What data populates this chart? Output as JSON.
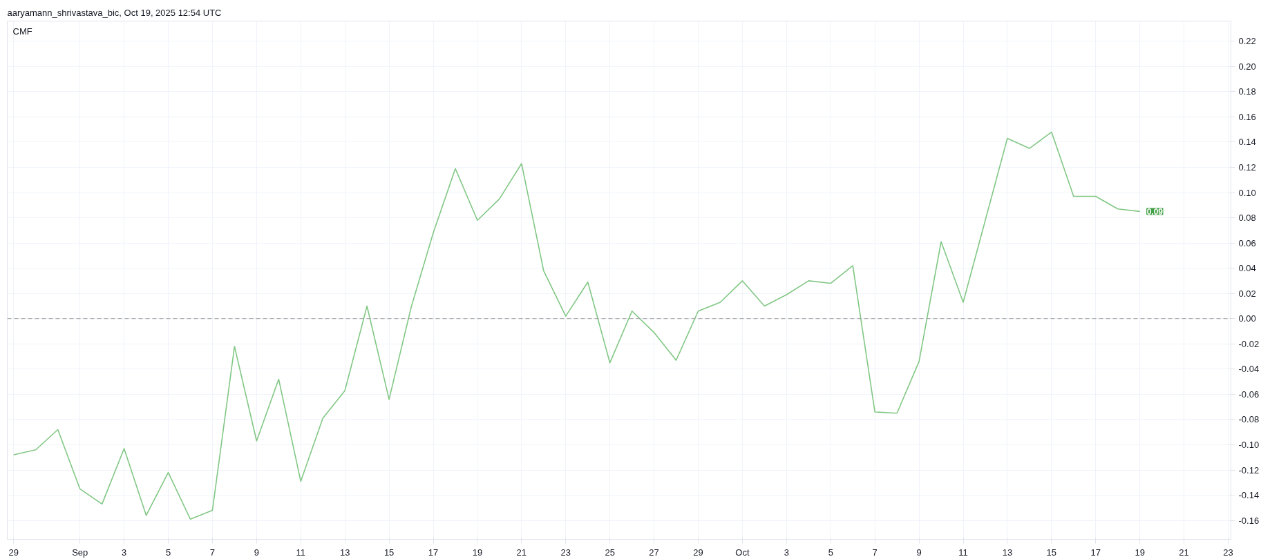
{
  "chart_data": {
    "type": "line",
    "title": "aaryamann_shrivastava_bic, Oct 19, 2025 12:54 UTC",
    "x": [
      "2025-08-29",
      "2025-08-30",
      "2025-08-31",
      "2025-09-01",
      "2025-09-02",
      "2025-09-03",
      "2025-09-04",
      "2025-09-05",
      "2025-09-06",
      "2025-09-07",
      "2025-09-08",
      "2025-09-09",
      "2025-09-10",
      "2025-09-11",
      "2025-09-12",
      "2025-09-13",
      "2025-09-14",
      "2025-09-15",
      "2025-09-16",
      "2025-09-17",
      "2025-09-18",
      "2025-09-19",
      "2025-09-20",
      "2025-09-21",
      "2025-09-22",
      "2025-09-23",
      "2025-09-24",
      "2025-09-25",
      "2025-09-26",
      "2025-09-27",
      "2025-09-28",
      "2025-09-29",
      "2025-09-30",
      "2025-10-01",
      "2025-10-02",
      "2025-10-03",
      "2025-10-04",
      "2025-10-05",
      "2025-10-06",
      "2025-10-07",
      "2025-10-08",
      "2025-10-09",
      "2025-10-10",
      "2025-10-11",
      "2025-10-12",
      "2025-10-13",
      "2025-10-14",
      "2025-10-15",
      "2025-10-16",
      "2025-10-17",
      "2025-10-18",
      "2025-10-19"
    ],
    "series": [
      {
        "name": "CMF",
        "color": "#81c784",
        "values": [
          -0.108,
          -0.104,
          -0.088,
          -0.135,
          -0.147,
          -0.103,
          -0.156,
          -0.122,
          -0.159,
          -0.152,
          -0.022,
          -0.097,
          -0.048,
          -0.129,
          -0.079,
          -0.057,
          0.01,
          -0.064,
          0.009,
          0.068,
          0.119,
          0.078,
          0.095,
          0.123,
          0.038,
          0.002,
          0.029,
          -0.035,
          0.006,
          -0.011,
          -0.033,
          0.006,
          0.013,
          0.03,
          0.01,
          0.019,
          0.03,
          0.028,
          0.042,
          -0.074,
          -0.075,
          -0.034,
          0.061,
          0.013,
          0.078,
          0.143,
          0.135,
          0.148,
          0.097,
          0.097,
          0.087,
          0.085
        ],
        "value_labels": [
          null,
          null,
          null,
          null,
          null,
          null,
          null,
          null,
          null,
          null,
          null,
          null,
          null,
          null,
          null,
          null,
          null,
          null,
          null,
          null,
          null,
          null,
          null,
          null,
          null,
          null,
          null,
          null,
          null,
          null,
          null,
          null,
          null,
          null,
          null,
          null,
          null,
          null,
          null,
          null,
          null,
          null,
          null,
          null,
          null,
          null,
          null,
          null,
          null,
          null,
          null,
          "0.09"
        ]
      }
    ],
    "xlim": [
      "2025-08-28T17:00",
      "2025-10-23T03:00"
    ],
    "xticks": [
      {
        "value": "2025-08-29",
        "label": "29"
      },
      {
        "value": "2025-09-01",
        "label": "Sep"
      },
      {
        "value": "2025-09-03",
        "label": "3"
      },
      {
        "value": "2025-09-05",
        "label": "5"
      },
      {
        "value": "2025-09-07",
        "label": "7"
      },
      {
        "value": "2025-09-09",
        "label": "9"
      },
      {
        "value": "2025-09-11",
        "label": "11"
      },
      {
        "value": "2025-09-13",
        "label": "13"
      },
      {
        "value": "2025-09-15",
        "label": "15"
      },
      {
        "value": "2025-09-17",
        "label": "17"
      },
      {
        "value": "2025-09-19",
        "label": "19"
      },
      {
        "value": "2025-09-21",
        "label": "21"
      },
      {
        "value": "2025-09-23",
        "label": "23"
      },
      {
        "value": "2025-09-25",
        "label": "25"
      },
      {
        "value": "2025-09-27",
        "label": "27"
      },
      {
        "value": "2025-09-29",
        "label": "29"
      },
      {
        "value": "2025-10-01",
        "label": "Oct"
      },
      {
        "value": "2025-10-03",
        "label": "3"
      },
      {
        "value": "2025-10-05",
        "label": "5"
      },
      {
        "value": "2025-10-07",
        "label": "7"
      },
      {
        "value": "2025-10-09",
        "label": "9"
      },
      {
        "value": "2025-10-11",
        "label": "11"
      },
      {
        "value": "2025-10-13",
        "label": "13"
      },
      {
        "value": "2025-10-15",
        "label": "15"
      },
      {
        "value": "2025-10-17",
        "label": "17"
      },
      {
        "value": "2025-10-19",
        "label": "19"
      },
      {
        "value": "2025-10-21",
        "label": "21"
      },
      {
        "value": "2025-10-23",
        "label": "23"
      }
    ],
    "ylim": [
      -0.175,
      0.236
    ],
    "yticks": [
      {
        "value": -0.16,
        "label": "-0.16"
      },
      {
        "value": -0.14,
        "label": "-0.14"
      },
      {
        "value": -0.12,
        "label": "-0.12"
      },
      {
        "value": -0.1,
        "label": "-0.10"
      },
      {
        "value": -0.08,
        "label": "-0.08"
      },
      {
        "value": -0.06,
        "label": "-0.06"
      },
      {
        "value": -0.04,
        "label": "-0.04"
      },
      {
        "value": -0.02,
        "label": "-0.02"
      },
      {
        "value": 0,
        "label": "0.00"
      },
      {
        "value": 0.02,
        "label": "0.02"
      },
      {
        "value": 0.04,
        "label": "0.04"
      },
      {
        "value": 0.06,
        "label": "0.06"
      },
      {
        "value": 0.08,
        "label": "0.08"
      },
      {
        "value": 0.1,
        "label": "0.10"
      },
      {
        "value": 0.12,
        "label": "0.12"
      },
      {
        "value": 0.14,
        "label": "0.14"
      },
      {
        "value": 0.16,
        "label": "0.16"
      },
      {
        "value": 0.18,
        "label": "0.18"
      },
      {
        "value": 0.2,
        "label": "0.20"
      },
      {
        "value": 0.22,
        "label": "0.22"
      }
    ],
    "ref_lines": [
      {
        "axis": "y",
        "value": 0,
        "color": "#9e9e9e",
        "line_style": "dashed"
      }
    ],
    "grid": true,
    "legend": "top left",
    "line_style": "solid",
    "marker": "none"
  }
}
